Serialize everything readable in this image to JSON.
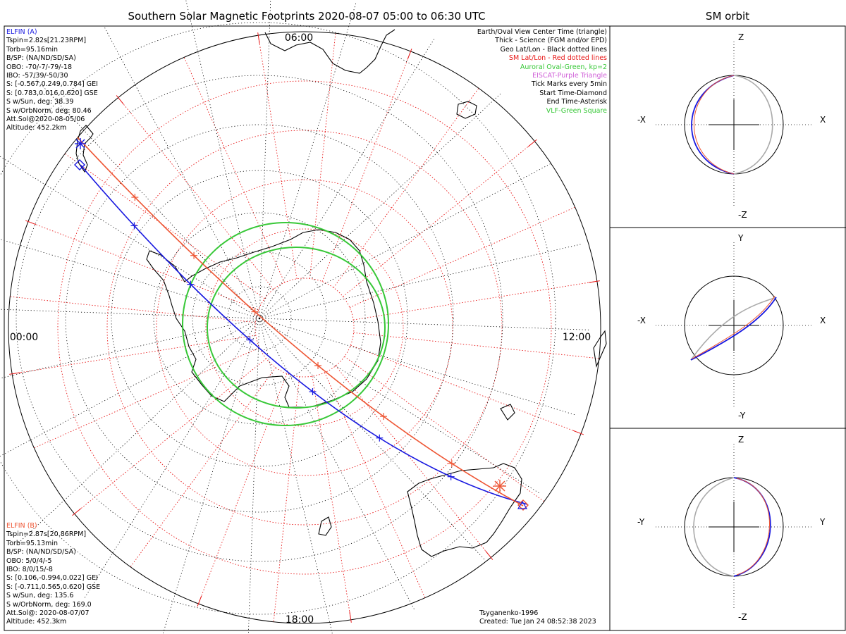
{
  "title": "Southern Solar Magnetic Footprints 2020-08-07 05:00 to 06:30 UTC",
  "orbit_title": "SM orbit",
  "map": {
    "time_labels": {
      "top": "06:00",
      "left": "00:00",
      "right": "12:00",
      "bottom": "18:00"
    }
  },
  "elfin_a": {
    "name": "ELFIN (A)",
    "color": "#1818e0",
    "lines": [
      "Tspin=2.82s[21.23RPM]",
      "Torb=95.16min",
      "B/SP: (NA/ND/SD/SA)",
      "OBO: -70/-7/-79/-18",
      "IBO: -57/39/-50/30",
      "S: [-0.567,0.249,0.784] GEI",
      "S: [0.783,0.016,0.620] GSE",
      "S w/Sun, deg: 38.39",
      "S w/OrbNorm, deg: 80.46",
      "Att.Sol@2020-08-05/06",
      "Altitude: 452.2km"
    ]
  },
  "elfin_b": {
    "name": "ELFIN (B)",
    "color": "#ee5533",
    "lines": [
      "Tspin=2.87s[20.86RPM]",
      "Torb=95.13min",
      "B/SP: (NA/ND/SD/SA)",
      "OBO: 5/0/4/-5",
      "IBO: 8/0/15/-8",
      "S: [0.106,-0.994,0.022] GEI",
      "S: [-0.711,0.565,0.620] GSE",
      "S w/Sun, deg: 135.6",
      "S w/OrbNorm, deg: 169.0",
      "Att.Sol@: 2020-08-07/07",
      "Altitude: 452.3km"
    ]
  },
  "legend": [
    {
      "text": "Earth/Oval View Center Time (triangle)",
      "color": "#000000"
    },
    {
      "text": "Thick - Science (FGM and/or EPD)",
      "color": "#000000"
    },
    {
      "text": "Geo Lat/Lon - Black dotted lines",
      "color": "#000000"
    },
    {
      "text": "SM Lat/Lon - Red dotted lines",
      "color": "#e81818"
    },
    {
      "text": "Auroral Oval-Green, kp=2",
      "color": "#38c838"
    },
    {
      "text": "EISCAT-Purple Triangle",
      "color": "#d060d8"
    },
    {
      "text": "Tick Marks every 5min",
      "color": "#000000"
    },
    {
      "text": "Start Time-Diamond",
      "color": "#000000"
    },
    {
      "text": "End Time-Asterisk",
      "color": "#000000"
    },
    {
      "text": "VLF-Green Square",
      "color": "#38c838"
    }
  ],
  "credits": {
    "line1": "Tsyganenko-1996",
    "line2": "Created: Tue Jan 24 08:52:38 2023"
  },
  "orbit_panels": [
    {
      "top": "Z",
      "bottom": "-Z",
      "left": "-X",
      "right": "X"
    },
    {
      "top": "Y",
      "bottom": "-Y",
      "left": "-X",
      "right": "X"
    },
    {
      "top": "Z",
      "bottom": "-Z",
      "left": "-Y",
      "right": "Y"
    }
  ],
  "colors": {
    "elfin_a": "#1818e0",
    "elfin_b": "#ee5533",
    "sm_grid": "#e81818",
    "geo_grid": "#000000",
    "oval": "#38c838",
    "orbit_shadow": "#aaaaaa"
  }
}
